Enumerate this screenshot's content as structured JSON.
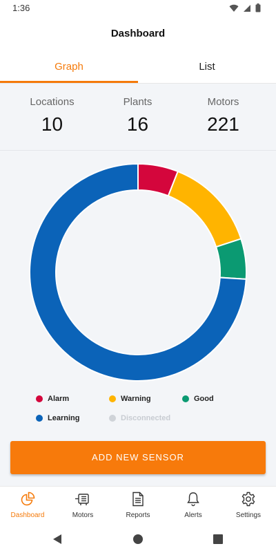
{
  "status_bar": {
    "time": "1:36"
  },
  "app_bar": {
    "title": "Dashboard"
  },
  "tabs": [
    {
      "label": "Graph",
      "active": true
    },
    {
      "label": "List",
      "active": false
    }
  ],
  "summary": {
    "locations": {
      "label": "Locations",
      "value": "10"
    },
    "plants": {
      "label": "Plants",
      "value": "16"
    },
    "motors": {
      "label": "Motors",
      "value": "221"
    }
  },
  "chart_data": {
    "type": "pie",
    "donut": true,
    "categories": [
      "Alarm",
      "Warning",
      "Good",
      "Learning",
      "Disconnected"
    ],
    "values": [
      6,
      14,
      6,
      74,
      0
    ],
    "colors": [
      "#d4063c",
      "#ffb400",
      "#0b9a72",
      "#0b63b8",
      "#cfd3d8"
    ]
  },
  "legend": [
    {
      "label": "Alarm",
      "color": "#d4063c",
      "muted": false
    },
    {
      "label": "Warning",
      "color": "#ffb400",
      "muted": false
    },
    {
      "label": "Good",
      "color": "#0b9a72",
      "muted": false
    },
    {
      "label": "Learning",
      "color": "#0b63b8",
      "muted": false
    },
    {
      "label": "Disconnected",
      "color": "#cfd3d8",
      "muted": true
    }
  ],
  "cta": {
    "label": "ADD NEW SENSOR",
    "color": "#f77a0b"
  },
  "bottom_nav": [
    {
      "label": "Dashboard",
      "icon": "pie-chart-icon",
      "active": true
    },
    {
      "label": "Motors",
      "icon": "motor-icon",
      "active": false
    },
    {
      "label": "Reports",
      "icon": "document-icon",
      "active": false
    },
    {
      "label": "Alerts",
      "icon": "bell-icon",
      "active": false
    },
    {
      "label": "Settings",
      "icon": "gear-icon",
      "active": false
    }
  ],
  "accent_color": "#f57a0a"
}
